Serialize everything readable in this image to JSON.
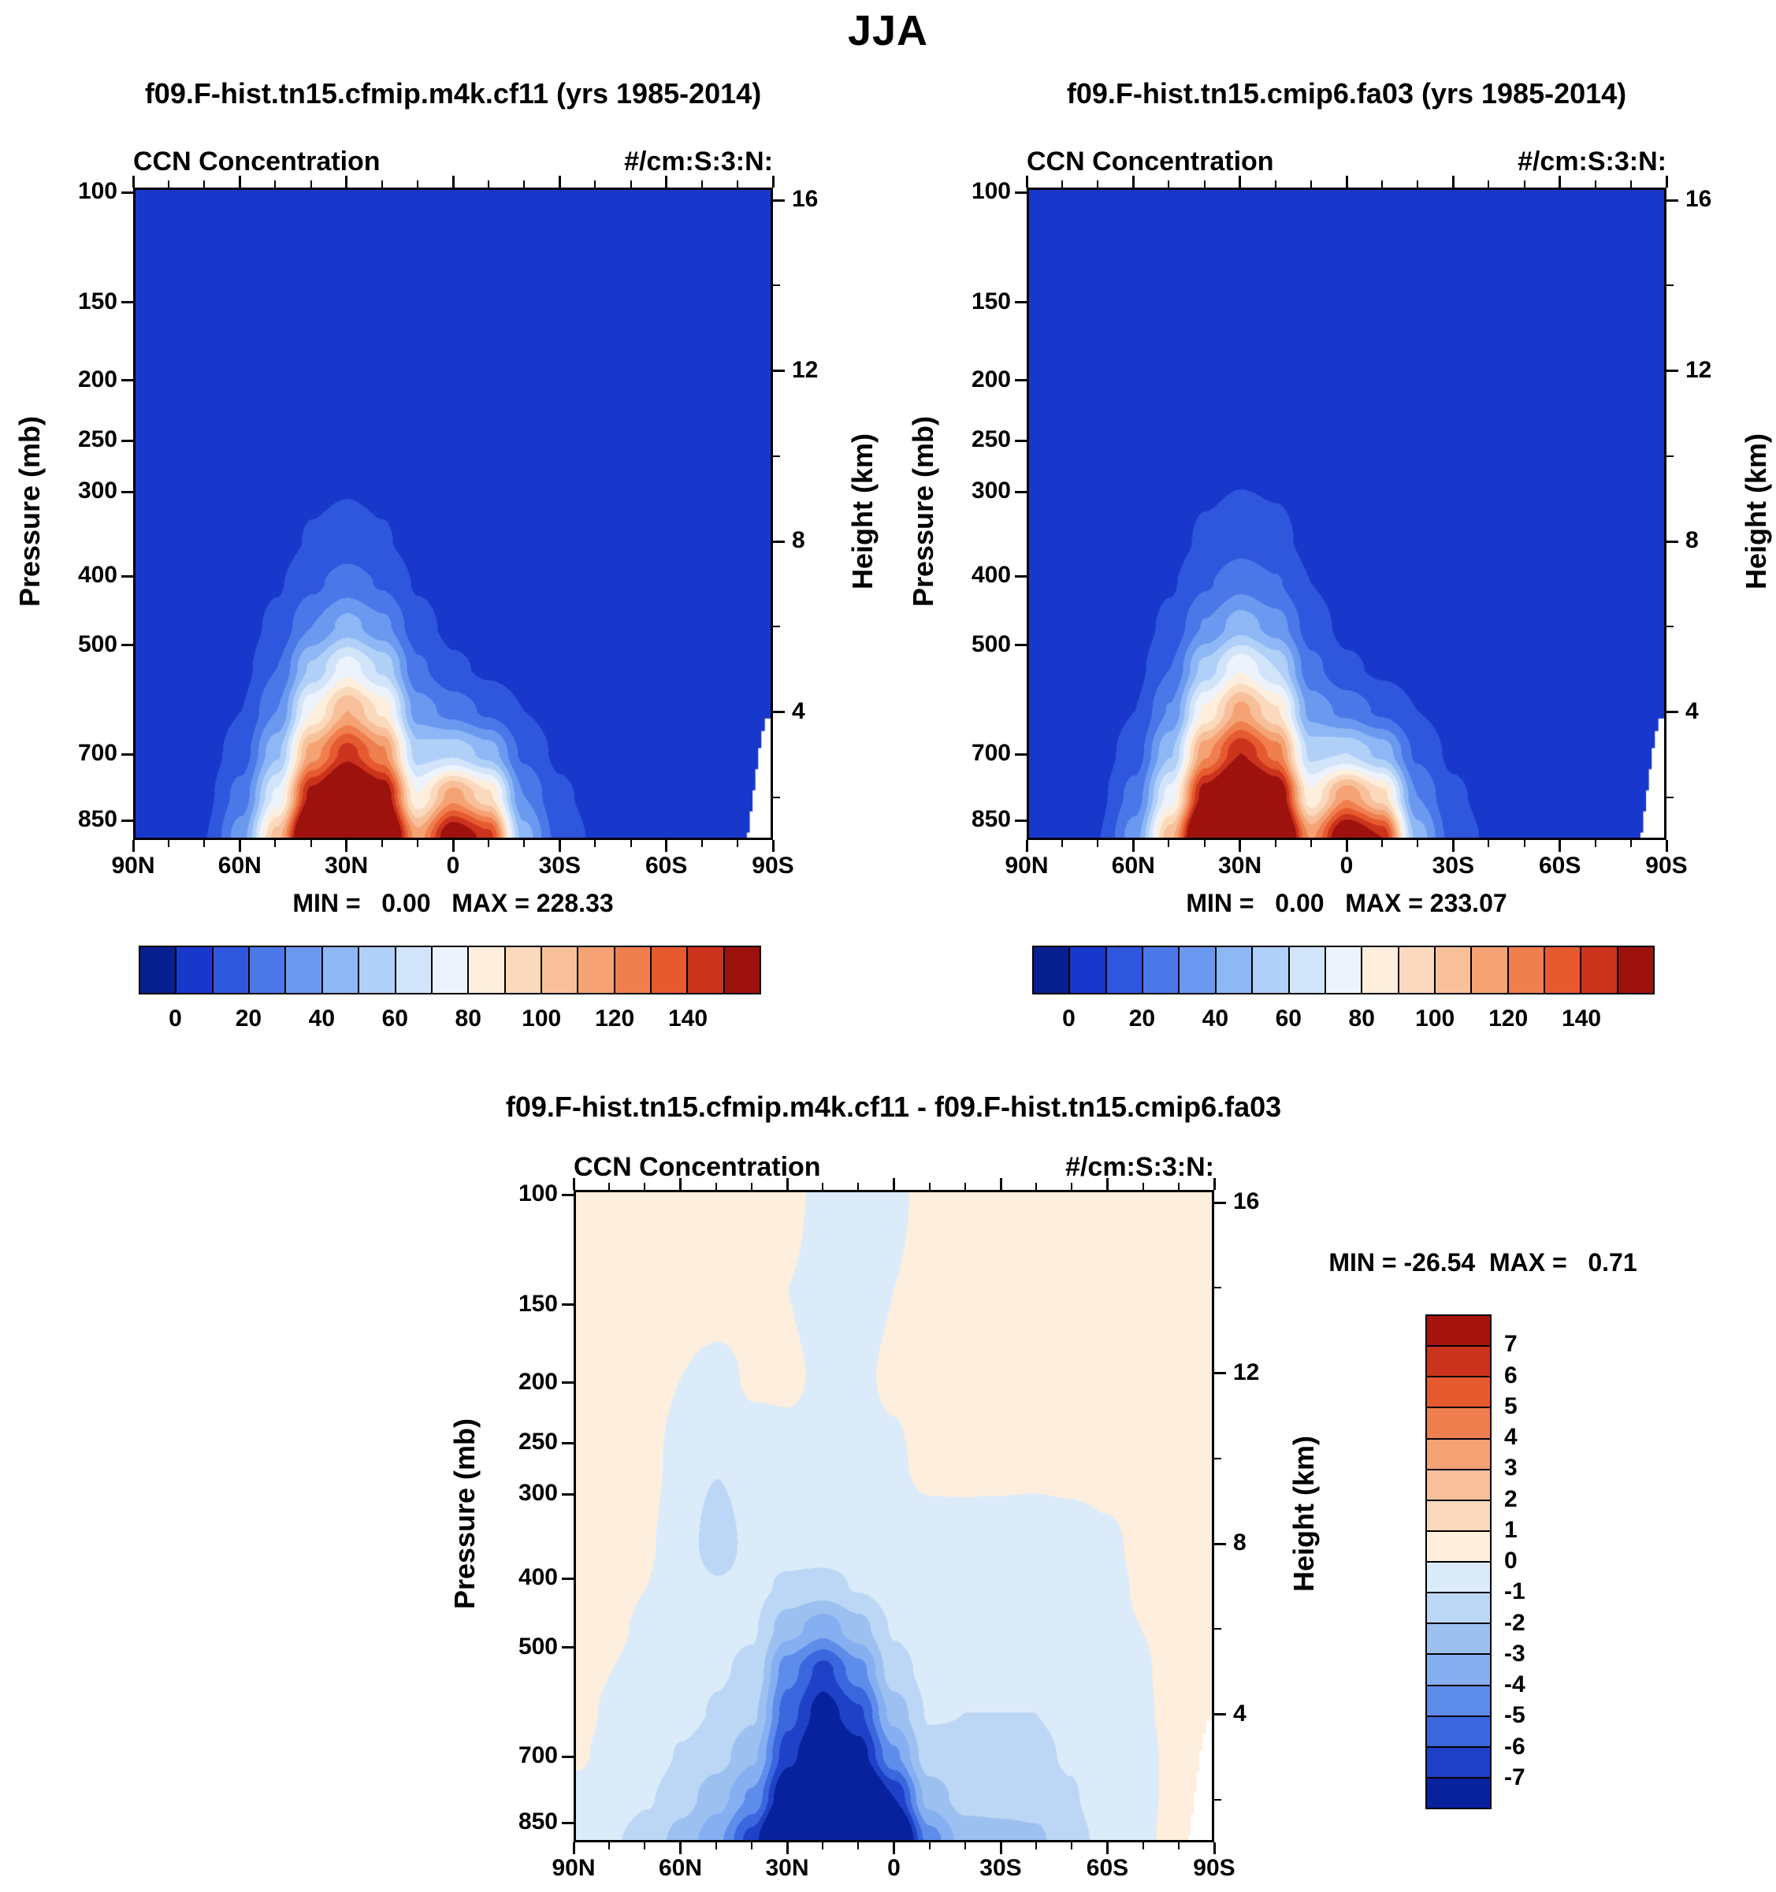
{
  "figure": {
    "title": "JJA"
  },
  "axes": {
    "height_range": [
      16.3,
      1.0
    ],
    "pressure_ticks": [
      {
        "label": "100",
        "h": 16.18
      },
      {
        "label": "150",
        "h": 13.61
      },
      {
        "label": "200",
        "h": 11.78
      },
      {
        "label": "250",
        "h": 10.36
      },
      {
        "label": "300",
        "h": 9.16
      },
      {
        "label": "400",
        "h": 7.19
      },
      {
        "label": "500",
        "h": 5.57
      },
      {
        "label": "700",
        "h": 3.01
      },
      {
        "label": "850",
        "h": 1.46
      }
    ],
    "height_ticks": [
      {
        "label": "16",
        "h": 16
      },
      {
        "label": "12",
        "h": 12
      },
      {
        "label": "8",
        "h": 8
      },
      {
        "label": "4",
        "h": 4
      }
    ],
    "height_minor": [
      14,
      10,
      6,
      2
    ],
    "lat_ticks": [
      {
        "label": "90N",
        "lat": 90
      },
      {
        "label": "60N",
        "lat": 60
      },
      {
        "label": "30N",
        "lat": 30
      },
      {
        "label": "0",
        "lat": 0
      },
      {
        "label": "30S",
        "lat": -30
      },
      {
        "label": "60S",
        "lat": -60
      },
      {
        "label": "90S",
        "lat": -90
      }
    ],
    "lat_minor": [
      80,
      70,
      50,
      40,
      20,
      10,
      -10,
      -20,
      -40,
      -50,
      -70,
      -80
    ]
  },
  "surface_mask": [
    [
      -83.5,
      0.9
    ],
    [
      -83.5,
      1.1
    ],
    [
      -84.3,
      1.1
    ],
    [
      -84.3,
      1.6
    ],
    [
      -85.1,
      1.6
    ],
    [
      -85.1,
      2.1
    ],
    [
      -85.9,
      2.1
    ],
    [
      -85.9,
      2.6
    ],
    [
      -86.7,
      2.6
    ],
    [
      -86.7,
      3.1
    ],
    [
      -87.6,
      3.1
    ],
    [
      -87.6,
      3.5
    ],
    [
      -88.6,
      3.5
    ],
    [
      -88.6,
      3.8
    ],
    [
      -90.5,
      3.8
    ],
    [
      -90.5,
      0.9
    ]
  ],
  "chart_data": [
    {
      "type": "heatmap",
      "title": "f09.F-hist.tn15.cfmip.m4k.cf11 (yrs 1985-2014)",
      "subtitle_left": "CCN Concentration",
      "subtitle_right": "#/cm:S:3:N:",
      "ylabel_left": "Pressure (mb)",
      "ylabel_right": "Height (km)",
      "minmax": "MIN =   0.00   MAX = 228.33",
      "min": 0.0,
      "max": 228.33,
      "levels": [
        0,
        10,
        20,
        30,
        40,
        50,
        60,
        70,
        80,
        90,
        100,
        110,
        120,
        130,
        140,
        150
      ],
      "colors": [
        "#071f8f",
        "#1838cc",
        "#2f57dd",
        "#4b78e8",
        "#6b99f0",
        "#8db7f5",
        "#b0d0f8",
        "#d2e4fa",
        "#ecf3fc",
        "#fdeedd",
        "#fbd9bd",
        "#f8c09a",
        "#f5a274",
        "#ef7f4e",
        "#e65a30",
        "#cc331c",
        "#9e120e"
      ],
      "colorbar_labels": [
        "0",
        "20",
        "40",
        "60",
        "80",
        "100",
        "120",
        "140"
      ],
      "surface_mask": true,
      "grid": {
        "lats": [
          90,
          80,
          70,
          60,
          50,
          40,
          30,
          20,
          10,
          0,
          -10,
          -20,
          -30,
          -40,
          -50,
          -60,
          -70,
          -80,
          -90
        ],
        "heights": [
          16.3,
          14,
          12,
          10,
          8,
          7,
          6,
          5,
          4,
          3,
          2,
          1
        ],
        "values": [
          [
            1,
            1,
            1,
            1,
            1,
            1,
            1,
            1,
            1,
            1,
            1,
            1,
            1,
            1,
            1,
            1,
            1,
            1,
            1
          ],
          [
            1,
            1,
            1,
            1,
            1,
            2,
            2,
            2,
            2,
            2,
            2,
            1,
            1,
            1,
            1,
            1,
            1,
            1,
            1
          ],
          [
            1,
            1,
            1,
            2,
            2,
            3,
            3,
            3,
            3,
            3,
            2,
            2,
            1,
            1,
            1,
            1,
            1,
            1,
            1
          ],
          [
            1,
            1,
            2,
            2,
            3,
            5,
            6,
            5,
            4,
            3,
            3,
            2,
            2,
            1,
            1,
            1,
            1,
            1,
            1
          ],
          [
            1,
            2,
            2,
            3,
            6,
            11,
            14,
            11,
            6,
            4,
            3,
            3,
            2,
            2,
            1,
            1,
            1,
            1,
            1
          ],
          [
            1,
            2,
            3,
            4,
            9,
            18,
            25,
            19,
            9,
            5,
            4,
            3,
            3,
            2,
            2,
            1,
            1,
            1,
            1
          ],
          [
            2,
            2,
            3,
            5,
            13,
            30,
            44,
            33,
            14,
            7,
            5,
            4,
            3,
            3,
            2,
            2,
            1,
            1,
            1
          ],
          [
            2,
            3,
            4,
            7,
            20,
            52,
            76,
            58,
            22,
            12,
            8,
            6,
            4,
            3,
            2,
            2,
            1,
            1,
            1
          ],
          [
            2,
            3,
            5,
            10,
            30,
            80,
            110,
            88,
            35,
            26,
            18,
            10,
            6,
            4,
            3,
            2,
            1,
            1,
            1
          ],
          [
            2,
            4,
            6,
            15,
            48,
            115,
            145,
            122,
            55,
            58,
            46,
            18,
            8,
            5,
            3,
            2,
            2,
            1,
            1
          ],
          [
            3,
            4,
            8,
            24,
            72,
            155,
            188,
            162,
            80,
            115,
            92,
            30,
            12,
            7,
            4,
            3,
            2,
            1,
            1
          ],
          [
            3,
            5,
            10,
            36,
            105,
            200,
            226,
            196,
            115,
            165,
            145,
            45,
            16,
            9,
            5,
            3,
            2,
            1,
            1
          ]
        ]
      }
    },
    {
      "type": "heatmap",
      "title": "f09.F-hist.tn15.cmip6.fa03 (yrs 1985-2014)",
      "subtitle_left": "CCN Concentration",
      "subtitle_right": "#/cm:S:3:N:",
      "ylabel_left": "Pressure (mb)",
      "ylabel_right": "Height (km)",
      "minmax": "MIN =   0.00   MAX = 233.07",
      "min": 0.0,
      "max": 233.07,
      "levels": [
        0,
        10,
        20,
        30,
        40,
        50,
        60,
        70,
        80,
        90,
        100,
        110,
        120,
        130,
        140,
        150
      ],
      "colors": [
        "#071f8f",
        "#1838cc",
        "#2f57dd",
        "#4b78e8",
        "#6b99f0",
        "#8db7f5",
        "#b0d0f8",
        "#d2e4fa",
        "#ecf3fc",
        "#fdeedd",
        "#fbd9bd",
        "#f8c09a",
        "#f5a274",
        "#ef7f4e",
        "#e65a30",
        "#cc331c",
        "#9e120e"
      ],
      "colorbar_labels": [
        "0",
        "20",
        "40",
        "60",
        "80",
        "100",
        "120",
        "140"
      ],
      "surface_mask": true,
      "grid": {
        "lats": [
          90,
          80,
          70,
          60,
          50,
          40,
          30,
          20,
          10,
          0,
          -10,
          -20,
          -30,
          -40,
          -50,
          -60,
          -70,
          -80,
          -90
        ],
        "heights": [
          16.3,
          14,
          12,
          10,
          8,
          7,
          6,
          5,
          4,
          3,
          2,
          1
        ],
        "values": [
          [
            1,
            1,
            1,
            1,
            1,
            1,
            1,
            1,
            1,
            1,
            1,
            1,
            1,
            1,
            1,
            1,
            1,
            1,
            1
          ],
          [
            1,
            1,
            1,
            1,
            1,
            2,
            2,
            2,
            2,
            2,
            2,
            1,
            1,
            1,
            1,
            1,
            1,
            1,
            1
          ],
          [
            1,
            1,
            1,
            2,
            2,
            3,
            3,
            3,
            3,
            3,
            2,
            2,
            1,
            1,
            1,
            1,
            1,
            1,
            1
          ],
          [
            1,
            1,
            2,
            2,
            3,
            5,
            7,
            6,
            4,
            3,
            3,
            2,
            2,
            1,
            1,
            1,
            1,
            1,
            1
          ],
          [
            1,
            2,
            2,
            3,
            6,
            12,
            16,
            13,
            7,
            4,
            3,
            3,
            2,
            2,
            1,
            1,
            1,
            1,
            1
          ],
          [
            1,
            2,
            3,
            4,
            9,
            19,
            27,
            21,
            10,
            5,
            4,
            3,
            3,
            2,
            2,
            1,
            1,
            1,
            1
          ],
          [
            2,
            2,
            3,
            5,
            13,
            31,
            46,
            35,
            15,
            7,
            5,
            4,
            3,
            3,
            2,
            2,
            1,
            1,
            1
          ],
          [
            2,
            3,
            4,
            7,
            20,
            54,
            79,
            60,
            23,
            12,
            8,
            6,
            4,
            3,
            2,
            2,
            1,
            1,
            1
          ],
          [
            2,
            3,
            5,
            10,
            31,
            82,
            114,
            91,
            36,
            27,
            18,
            10,
            6,
            4,
            3,
            2,
            1,
            1,
            1
          ],
          [
            2,
            4,
            6,
            15,
            49,
            118,
            150,
            126,
            57,
            60,
            47,
            18,
            8,
            5,
            3,
            2,
            2,
            1,
            1
          ],
          [
            3,
            4,
            8,
            24,
            74,
            158,
            194,
            167,
            82,
            118,
            94,
            30,
            12,
            7,
            4,
            3,
            2,
            1,
            1
          ],
          [
            3,
            5,
            10,
            36,
            107,
            205,
            231,
            200,
            118,
            170,
            150,
            46,
            16,
            9,
            5,
            3,
            2,
            1,
            1
          ]
        ]
      }
    },
    {
      "type": "heatmap",
      "title": "f09.F-hist.tn15.cfmip.m4k.cf11 - f09.F-hist.tn15.cmip6.fa03",
      "subtitle_left": "CCN Concentration",
      "subtitle_right": "#/cm:S:3:N:",
      "ylabel_left": "Pressure (mb)",
      "ylabel_right": "Height (km)",
      "minmax": "MIN = -26.54  MAX =   0.71",
      "min": -26.54,
      "max": 0.71,
      "levels": [
        -7,
        -6,
        -5,
        -4,
        -3,
        -2,
        -1,
        0,
        1,
        2,
        3,
        4,
        5,
        6,
        7
      ],
      "colors": [
        "#08219c",
        "#1f41c8",
        "#3a67dd",
        "#5e8ceb",
        "#86aff2",
        "#9cc0f0",
        "#bcd7f5",
        "#dcebfa",
        "#fdeedd",
        "#fbd9bd",
        "#f8c09a",
        "#f5a274",
        "#ef7f4e",
        "#e65a30",
        "#cc331c",
        "#a5140f"
      ],
      "colorbar_labels": [
        "7",
        "6",
        "5",
        "4",
        "3",
        "2",
        "1",
        "0",
        "-1",
        "-2",
        "-3",
        "-4",
        "-5",
        "-6",
        "-7"
      ],
      "surface_mask": true,
      "grid": {
        "lats": [
          90,
          80,
          70,
          60,
          50,
          40,
          30,
          20,
          10,
          0,
          -10,
          -20,
          -30,
          -40,
          -50,
          -60,
          -70,
          -80,
          -90
        ],
        "heights": [
          16.3,
          14,
          12,
          10,
          8,
          7,
          6,
          5,
          4,
          3,
          2,
          1
        ],
        "values": [
          [
            0.5,
            0.5,
            0.5,
            0.5,
            0.5,
            0.4,
            0.3,
            -0.3,
            -0.4,
            -0.2,
            0.3,
            0.4,
            0.5,
            0.5,
            0.5,
            0.5,
            0.5,
            0.5,
            0.5
          ],
          [
            0.5,
            0.5,
            0.5,
            0.4,
            0.4,
            0.3,
            0.0,
            -0.3,
            -0.3,
            0.0,
            0.3,
            0.4,
            0.5,
            0.5,
            0.5,
            0.5,
            0.5,
            0.5,
            0.5
          ],
          [
            0.5,
            0.5,
            0.4,
            0.0,
            -0.2,
            0.1,
            0.1,
            -0.1,
            -0.1,
            0.1,
            0.3,
            0.4,
            0.4,
            0.5,
            0.5,
            0.5,
            0.5,
            0.5,
            0.5
          ],
          [
            0.5,
            0.4,
            0.3,
            -0.4,
            -0.9,
            -0.3,
            -0.2,
            -0.2,
            -0.2,
            -0.1,
            0.2,
            0.3,
            0.4,
            0.4,
            0.5,
            0.5,
            0.5,
            0.5,
            0.5
          ],
          [
            0.4,
            0.3,
            0.1,
            -0.5,
            -1.6,
            -0.6,
            -0.5,
            -0.4,
            -0.4,
            -0.3,
            -0.3,
            -0.4,
            -0.6,
            -0.7,
            -0.6,
            -0.2,
            0.2,
            0.4,
            0.4
          ],
          [
            0.4,
            0.2,
            0.0,
            -0.5,
            -0.9,
            -0.7,
            -1.2,
            -1.4,
            -0.9,
            -0.5,
            -0.4,
            -0.5,
            -0.7,
            -0.8,
            -0.6,
            -0.3,
            0.1,
            0.4,
            0.4
          ],
          [
            0.3,
            0.1,
            -0.1,
            -0.6,
            -0.8,
            -0.9,
            -2.6,
            -3.6,
            -2.4,
            -0.9,
            -0.5,
            -0.6,
            -0.8,
            -0.8,
            -0.6,
            -0.3,
            0.0,
            0.3,
            0.4
          ],
          [
            0.3,
            0.0,
            -0.2,
            -0.6,
            -0.9,
            -1.2,
            -4.6,
            -6.4,
            -4.4,
            -1.4,
            -0.7,
            -0.8,
            -0.9,
            -0.9,
            -0.7,
            -0.4,
            -0.1,
            0.3,
            0.4
          ],
          [
            0.2,
            -0.1,
            -0.3,
            -0.7,
            -1.1,
            -1.8,
            -5.6,
            -7.6,
            -6.2,
            -2.6,
            -0.9,
            -1.0,
            -1.0,
            -1.0,
            -0.8,
            -0.4,
            -0.1,
            0.2,
            0.4
          ],
          [
            0.1,
            -0.2,
            -0.5,
            -1.1,
            -1.6,
            -2.8,
            -6.6,
            -8.8,
            -7.6,
            -4.2,
            -1.4,
            -1.2,
            -1.2,
            -1.2,
            -0.9,
            -0.5,
            -0.2,
            0.2,
            0.4
          ],
          [
            -0.2,
            -0.5,
            -0.9,
            -1.6,
            -2.6,
            -4.2,
            -8.5,
            -12.5,
            -10.5,
            -7.0,
            -2.6,
            -1.6,
            -1.6,
            -1.6,
            -1.1,
            -0.5,
            -0.2,
            0.2,
            0.4
          ],
          [
            -0.6,
            -0.9,
            -1.4,
            -2.4,
            -3.8,
            -6.5,
            -13.0,
            -22.0,
            -17.0,
            -10.5,
            -4.5,
            -2.6,
            -2.4,
            -2.2,
            -1.4,
            -0.7,
            -0.2,
            0.3,
            0.4
          ]
        ]
      }
    }
  ]
}
